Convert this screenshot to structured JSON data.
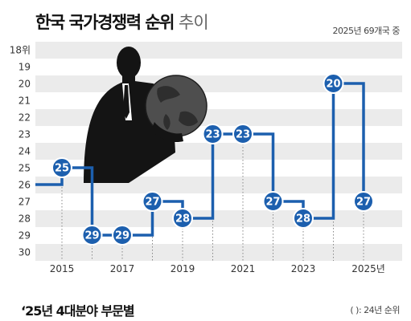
{
  "title": "한국 국가경쟁력 순위",
  "title_suffix": "추이",
  "note": "2025년 69개국 중",
  "footer_title": "‘25년 4대분야 부문별",
  "footer_note": "( ): 24년 순위",
  "colors": {
    "line": "#1c5fae",
    "band": "#ebebeb",
    "label_fill": "#1c5fae",
    "label_text": "#ffffff",
    "figure": "#141414"
  },
  "chart_data": {
    "type": "line",
    "line_shape": "step",
    "title": "한국 국가경쟁력 순위",
    "ylim": [
      18,
      30
    ],
    "y_inverted": true,
    "y_ticks": [
      "18위",
      "19",
      "20",
      "21",
      "22",
      "23",
      "24",
      "25",
      "26",
      "27",
      "28",
      "29",
      "30"
    ],
    "x_ticks": [
      "2015",
      "2017",
      "2019",
      "2021",
      "2023",
      "2025년"
    ],
    "x": [
      2014,
      2015,
      2016,
      2017,
      2018,
      2019,
      2020,
      2021,
      2022,
      2023,
      2024,
      2025
    ],
    "series": [
      {
        "values": [
          26,
          25,
          29,
          29,
          27,
          28,
          23,
          23,
          27,
          28,
          20,
          27
        ],
        "labeled": [
          false,
          true,
          true,
          true,
          true,
          true,
          true,
          true,
          true,
          true,
          true,
          true
        ]
      }
    ],
    "grid": "alternating horizontal bands",
    "illustration": "businessman holding globe"
  }
}
